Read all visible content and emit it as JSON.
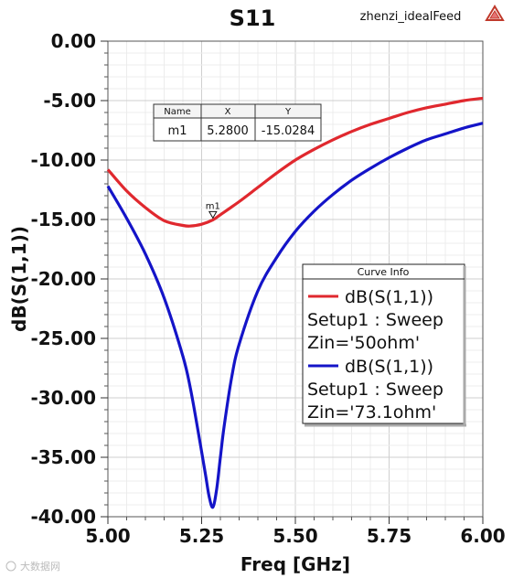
{
  "header": {
    "title": "S11",
    "project": "zhenzi_idealFeed"
  },
  "marker_table": {
    "headers": [
      "Name",
      "X",
      "Y"
    ],
    "row": [
      "m1",
      "5.2800",
      "-15.0284"
    ]
  },
  "marker": {
    "label": "m1",
    "x": 5.28,
    "y": -15.0284
  },
  "legend": {
    "title": "Curve Info",
    "entries": [
      {
        "lines": [
          "dB(S(1,1))",
          "Setup1 : Sweep",
          "Zin='50ohm'"
        ],
        "color": "#e0282e"
      },
      {
        "lines": [
          "dB(S(1,1))",
          "Setup1 : Sweep",
          "Zin='73.1ohm'"
        ],
        "color": "#1414c8"
      }
    ]
  },
  "watermark": "大数据网",
  "chart_data": {
    "type": "line",
    "title": "S11",
    "xlabel": "Freq [GHz]",
    "ylabel": "dB(S(1,1))",
    "xlim": [
      5.0,
      6.0
    ],
    "ylim": [
      -40.0,
      0.0
    ],
    "x_ticks": [
      "5.00",
      "5.25",
      "5.50",
      "5.75",
      "6.00"
    ],
    "y_ticks": [
      "0.00",
      "-5.00",
      "-10.00",
      "-15.00",
      "-20.00",
      "-25.00",
      "-30.00",
      "-35.00",
      "-40.00"
    ],
    "grid": true,
    "legend_position": "right",
    "series": [
      {
        "name": "dB(S(1,1)) Setup1 : Sweep Zin='50ohm'",
        "color": "#e0282e",
        "x": [
          5.0,
          5.05,
          5.1,
          5.15,
          5.2,
          5.22,
          5.25,
          5.28,
          5.3,
          5.35,
          5.4,
          5.45,
          5.5,
          5.55,
          5.6,
          5.65,
          5.7,
          5.75,
          5.8,
          5.85,
          5.9,
          5.95,
          6.0
        ],
        "y": [
          -10.8,
          -12.6,
          -14.0,
          -15.1,
          -15.5,
          -15.55,
          -15.4,
          -15.03,
          -14.6,
          -13.5,
          -12.3,
          -11.1,
          -10.0,
          -9.1,
          -8.3,
          -7.6,
          -7.0,
          -6.5,
          -6.0,
          -5.6,
          -5.3,
          -5.0,
          -4.8
        ]
      },
      {
        "name": "dB(S(1,1)) Setup1 : Sweep Zin='73.1ohm'",
        "color": "#1414c8",
        "x": [
          5.0,
          5.05,
          5.1,
          5.15,
          5.2,
          5.22,
          5.24,
          5.26,
          5.27,
          5.28,
          5.29,
          5.3,
          5.31,
          5.33,
          5.35,
          5.4,
          5.45,
          5.5,
          5.55,
          5.6,
          5.65,
          5.7,
          5.75,
          5.8,
          5.85,
          5.9,
          5.95,
          6.0
        ],
        "y": [
          -12.2,
          -14.9,
          -17.9,
          -21.6,
          -26.5,
          -29.2,
          -32.7,
          -36.4,
          -38.3,
          -39.2,
          -37.7,
          -35.0,
          -32.4,
          -28.3,
          -25.5,
          -21.0,
          -18.2,
          -16.0,
          -14.3,
          -12.9,
          -11.7,
          -10.7,
          -9.8,
          -9.0,
          -8.3,
          -7.8,
          -7.3,
          -6.9
        ]
      }
    ]
  }
}
